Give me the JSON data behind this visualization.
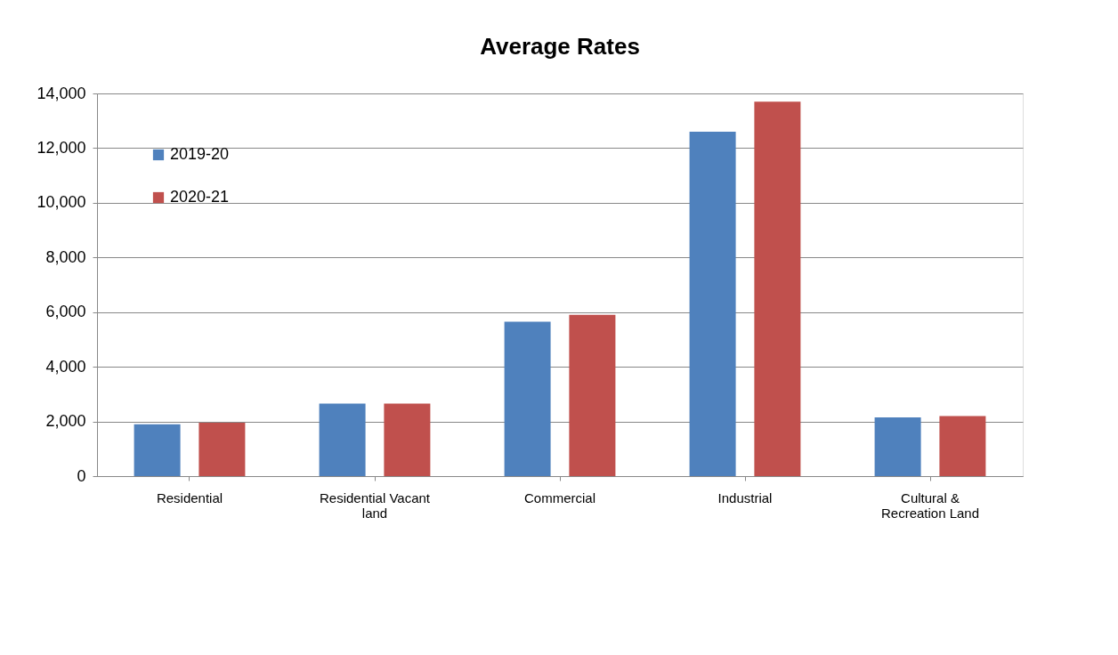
{
  "chart_data": {
    "type": "bar",
    "title": "Average Rates",
    "categories": [
      "Residential",
      "Residential Vacant land",
      "Commercial",
      "Industrial",
      "Cultural & Recreation Land"
    ],
    "series": [
      {
        "name": "2019-20",
        "color": "#4f81bd",
        "values": [
          1900,
          2650,
          5650,
          12600,
          2150
        ]
      },
      {
        "name": "2020-21",
        "color": "#c0504d",
        "values": [
          1950,
          2650,
          5900,
          13700,
          2200
        ]
      }
    ],
    "ylim": [
      0,
      14000
    ],
    "yticks": [
      {
        "value": 0,
        "label": "0"
      },
      {
        "value": 2000,
        "label": "2,000"
      },
      {
        "value": 4000,
        "label": "4,000"
      },
      {
        "value": 6000,
        "label": "6,000"
      },
      {
        "value": 8000,
        "label": "8,000"
      },
      {
        "value": 10000,
        "label": "10,000"
      },
      {
        "value": 12000,
        "label": "12,000"
      },
      {
        "value": 14000,
        "label": "14,000"
      }
    ],
    "grid": "y",
    "legend": "top left"
  }
}
